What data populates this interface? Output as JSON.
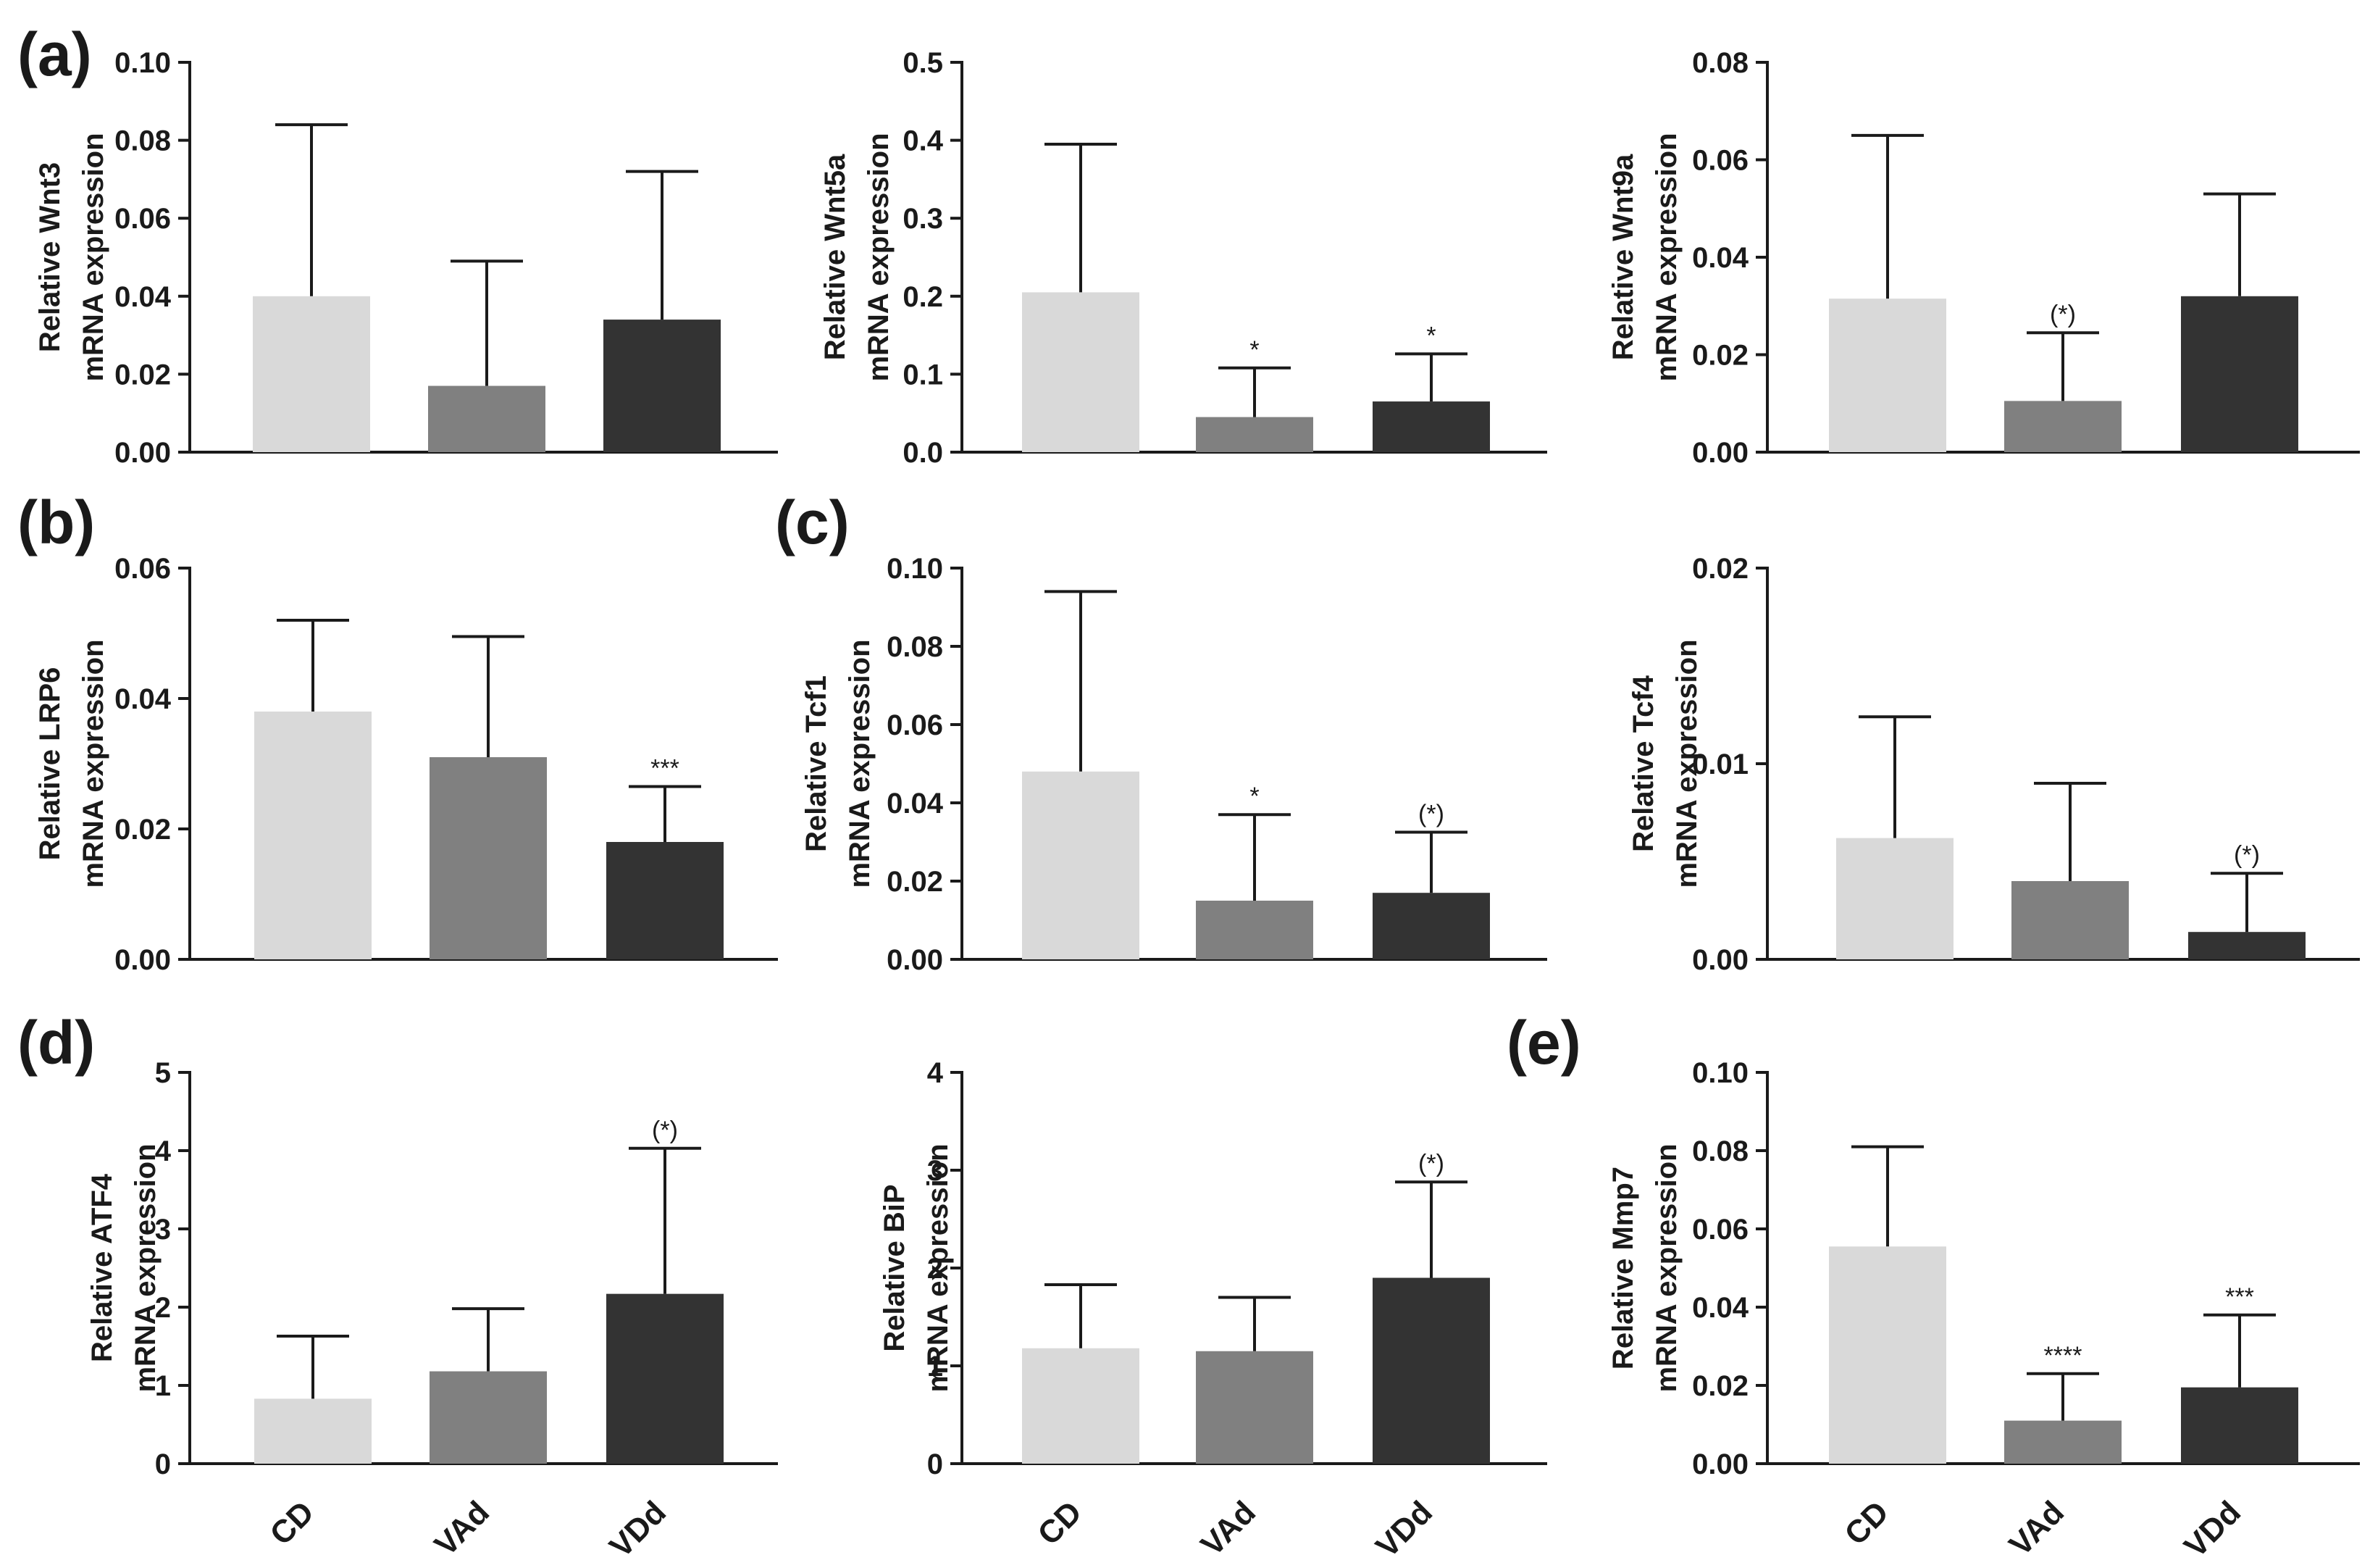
{
  "panel_labels": [
    "(a)",
    "(b)",
    "(c)",
    "(d)",
    "(e)"
  ],
  "colors": {
    "CD": "#d9d9d9",
    "VAd": "#808080",
    "VDd": "#333333",
    "axis": "#1a1a1a"
  },
  "chart_data": [
    {
      "type": "bar",
      "panel": "(a)",
      "categories": [
        "CD",
        "VAd",
        "VDd"
      ],
      "values": [
        0.04,
        0.017,
        0.034
      ],
      "errors": [
        0.084,
        0.049,
        0.072
      ],
      "significance": [
        "",
        "",
        ""
      ],
      "ylabel": [
        "Relative Wnt3",
        "mRNA expression"
      ],
      "ylim": [
        0,
        0.1
      ],
      "yticks": [
        "0.00",
        "0.02",
        "0.04",
        "0.06",
        "0.08",
        "0.10"
      ]
    },
    {
      "type": "bar",
      "panel": "",
      "categories": [
        "CD",
        "VAd",
        "VDd"
      ],
      "values": [
        0.205,
        0.045,
        0.065
      ],
      "errors": [
        0.395,
        0.108,
        0.126
      ],
      "significance": [
        "",
        "*",
        "*"
      ],
      "ylabel": [
        "Relative Wnt5a",
        "mRNA expression"
      ],
      "ylim": [
        0,
        0.5
      ],
      "yticks": [
        "0.0",
        "0.1",
        "0.2",
        "0.3",
        "0.4",
        "0.5"
      ]
    },
    {
      "type": "bar",
      "panel": "",
      "categories": [
        "CD",
        "VAd",
        "VDd"
      ],
      "values": [
        0.0315,
        0.0105,
        0.032
      ],
      "errors": [
        0.065,
        0.0245,
        0.053
      ],
      "significance": [
        "",
        "(*)",
        ""
      ],
      "ylabel": [
        "Relative Wnt9a",
        "mRNA expression"
      ],
      "ylim": [
        0,
        0.08
      ],
      "yticks": [
        "0.00",
        "0.02",
        "0.04",
        "0.06",
        "0.08"
      ]
    },
    {
      "type": "bar",
      "panel": "(b)",
      "categories": [
        "CD",
        "VAd",
        "VDd"
      ],
      "values": [
        0.038,
        0.031,
        0.018
      ],
      "errors": [
        0.052,
        0.0495,
        0.0265
      ],
      "significance": [
        "",
        "",
        "***"
      ],
      "ylabel": [
        "Relative LRP6",
        "mRNA expression"
      ],
      "ylim": [
        0,
        0.06
      ],
      "yticks": [
        "0.00",
        "0.02",
        "0.04",
        "0.06"
      ]
    },
    {
      "type": "bar",
      "panel": "(c)",
      "categories": [
        "CD",
        "VAd",
        "VDd"
      ],
      "values": [
        0.048,
        0.015,
        0.017
      ],
      "errors": [
        0.094,
        0.037,
        0.0325
      ],
      "significance": [
        "",
        "*",
        "(*)"
      ],
      "ylabel": [
        "Relative Tcf1",
        "mRNA expression"
      ],
      "ylim": [
        0,
        0.1
      ],
      "yticks": [
        "0.00",
        "0.02",
        "0.04",
        "0.06",
        "0.08",
        "0.10"
      ]
    },
    {
      "type": "bar",
      "panel": "",
      "categories": [
        "CD",
        "VAd",
        "VDd"
      ],
      "values": [
        0.0062,
        0.004,
        0.0014
      ],
      "errors": [
        0.0124,
        0.009,
        0.0044
      ],
      "significance": [
        "",
        "",
        "(*)"
      ],
      "ylabel": [
        "Relative Tcf4",
        "mRNA expression"
      ],
      "ylim": [
        0,
        0.02
      ],
      "yticks": [
        "0.00",
        "0.01",
        "0.02"
      ]
    },
    {
      "type": "bar",
      "panel": "(d)",
      "categories": [
        "CD",
        "VAd",
        "VDd"
      ],
      "values": [
        0.83,
        1.18,
        2.17
      ],
      "errors": [
        1.63,
        1.98,
        4.03
      ],
      "significance": [
        "",
        "",
        "(*)"
      ],
      "ylabel": [
        "Relative ATF4",
        "mRNA expression"
      ],
      "ylim": [
        0,
        5
      ],
      "yticks": [
        "0",
        "1",
        "2",
        "3",
        "4",
        "5"
      ]
    },
    {
      "type": "bar",
      "panel": "",
      "categories": [
        "CD",
        "VAd",
        "VDd"
      ],
      "values": [
        1.18,
        1.15,
        1.9
      ],
      "errors": [
        1.83,
        1.7,
        2.88
      ],
      "significance": [
        "",
        "",
        "(*)"
      ],
      "ylabel": [
        "Relative BiP",
        "mRNA expression"
      ],
      "ylim": [
        0,
        4
      ],
      "yticks": [
        "0",
        "1",
        "2",
        "3",
        "4"
      ]
    },
    {
      "type": "bar",
      "panel": "(e)",
      "categories": [
        "CD",
        "VAd",
        "VDd"
      ],
      "values": [
        0.0555,
        0.011,
        0.0195
      ],
      "errors": [
        0.081,
        0.023,
        0.038
      ],
      "significance": [
        "",
        "****",
        "***"
      ],
      "ylabel": [
        "Relative Mmp7",
        "mRNA expression"
      ],
      "ylim": [
        0,
        0.1
      ],
      "yticks": [
        "0.00",
        "0.02",
        "0.04",
        "0.06",
        "0.08",
        "0.10"
      ]
    }
  ]
}
